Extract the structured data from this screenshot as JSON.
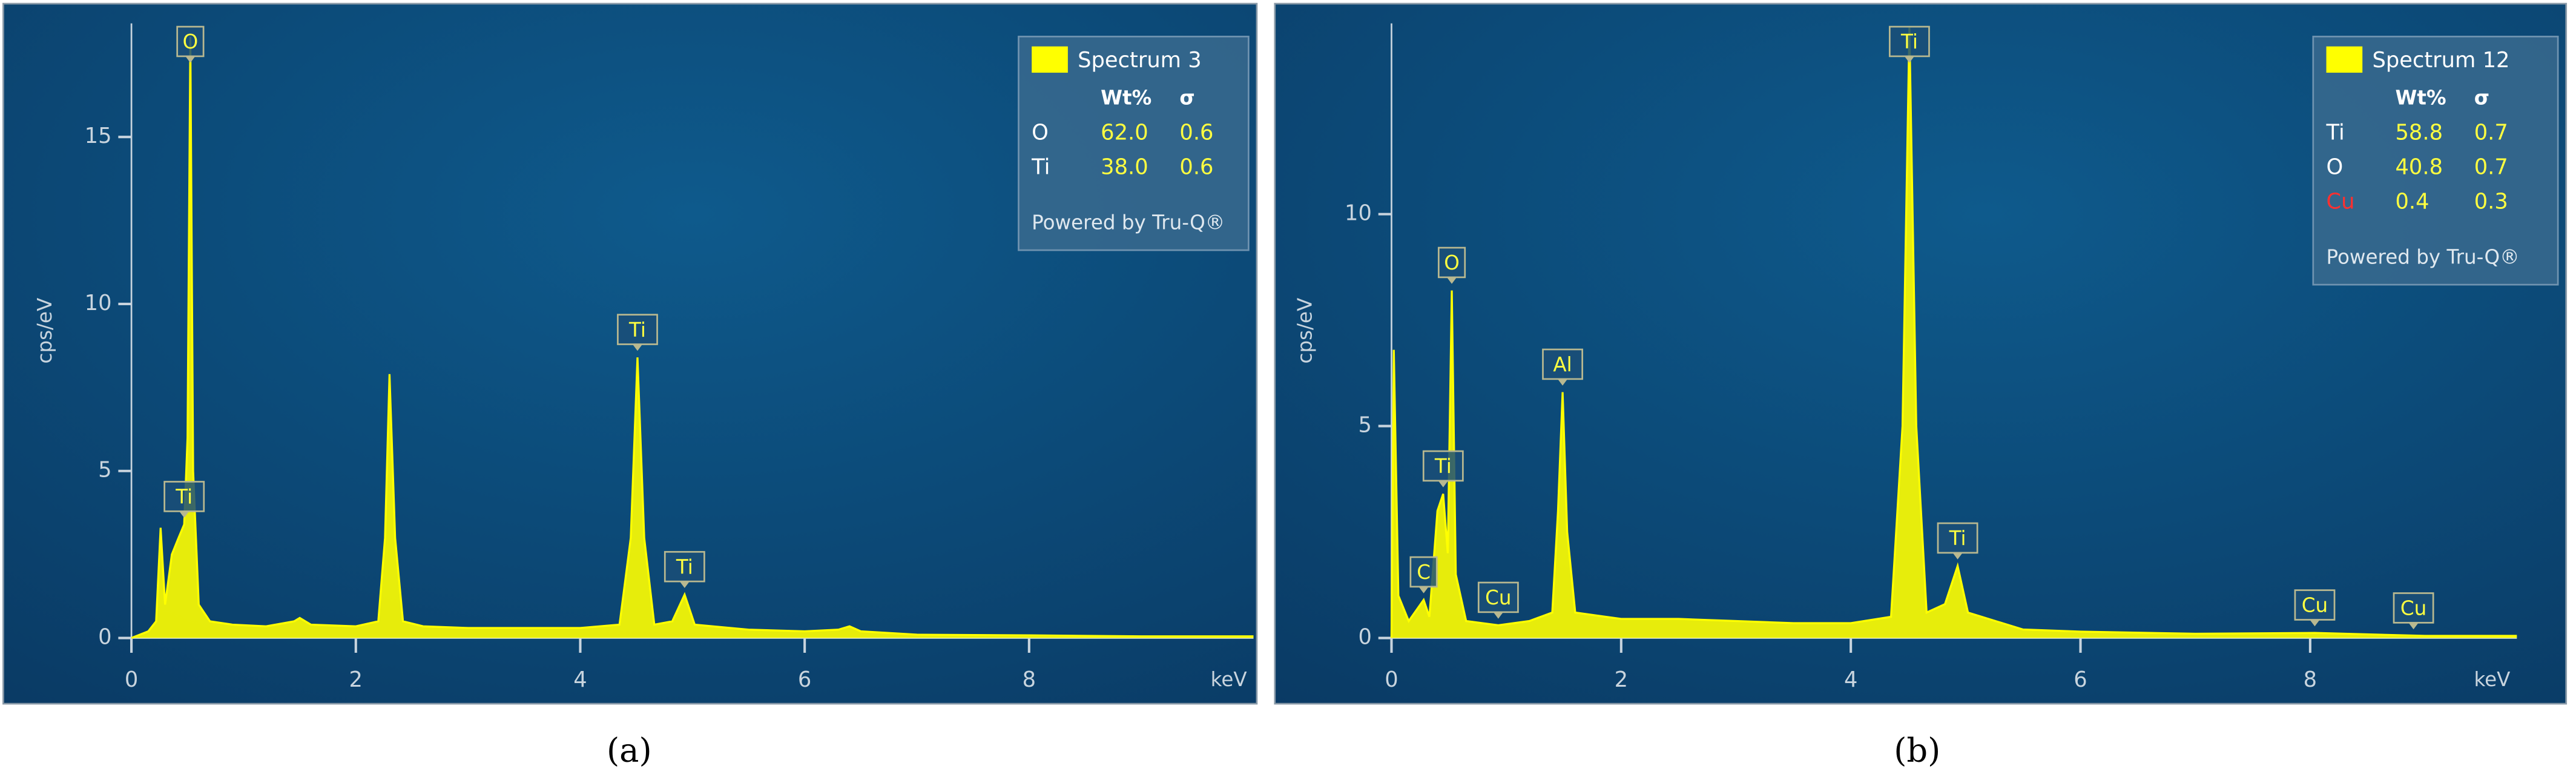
{
  "chart_data": [
    {
      "type": "line",
      "x_label": "keV",
      "y_label": "cps/eV",
      "caption": "(a)",
      "xlim": [
        0,
        10
      ],
      "xticks": [
        0,
        2,
        4,
        6,
        8
      ],
      "ylim": [
        0,
        18.4
      ],
      "yticks": [
        0,
        5,
        10,
        15
      ],
      "x": [
        0.0,
        0.15,
        0.22,
        0.26,
        0.3,
        0.36,
        0.42,
        0.47,
        0.5,
        0.525,
        0.55,
        0.6,
        0.7,
        0.9,
        1.2,
        1.45,
        1.5,
        1.6,
        2.0,
        2.2,
        2.26,
        2.3,
        2.35,
        2.42,
        2.6,
        3.0,
        3.5,
        4.0,
        4.35,
        4.45,
        4.51,
        4.57,
        4.66,
        4.82,
        4.93,
        5.02,
        5.5,
        6.0,
        6.3,
        6.4,
        6.5,
        7.0,
        8.0,
        9.0,
        10.0
      ],
      "series": [
        {
          "name": "Spectrum 3",
          "color": "#ffff00",
          "values": [
            0,
            0.2,
            0.5,
            3.3,
            1.0,
            2.5,
            3.0,
            3.4,
            6,
            18.0,
            5,
            1.0,
            0.5,
            0.4,
            0.35,
            0.5,
            0.6,
            0.4,
            0.35,
            0.5,
            3.0,
            7.9,
            3.0,
            0.5,
            0.35,
            0.3,
            0.3,
            0.3,
            0.4,
            3.0,
            8.4,
            3.0,
            0.4,
            0.5,
            1.3,
            0.4,
            0.25,
            0.2,
            0.25,
            0.35,
            0.2,
            0.1,
            0.08,
            0.05,
            0.05
          ]
        }
      ],
      "annotations": [
        {
          "text": "O",
          "x": 0.525,
          "y": 18.0
        },
        {
          "text": "Ti",
          "x": 0.47,
          "y": 3.4
        },
        {
          "text": "Ti",
          "x": 4.51,
          "y": 8.4
        },
        {
          "text": "Ti",
          "x": 4.93,
          "y": 1.3
        }
      ],
      "table": {
        "columns": [
          "Wt%",
          "σ"
        ],
        "rows": [
          [
            "O",
            "62.0",
            "0.6"
          ],
          [
            "Ti",
            "38.0",
            "0.6"
          ]
        ],
        "element_colors": [
          "#ffffff",
          "#ffffff"
        ],
        "footer": "Powered by Tru-Q®"
      }
    },
    {
      "type": "line",
      "x_label": "keV",
      "y_label": "cps/eV",
      "caption": "(b)",
      "xlim": [
        0,
        9.8
      ],
      "xticks": [
        0,
        2,
        4,
        6,
        8
      ],
      "ylim": [
        0,
        14.5
      ],
      "yticks": [
        0,
        5,
        10
      ],
      "x": [
        0.0,
        0.02,
        0.06,
        0.15,
        0.28,
        0.33,
        0.4,
        0.45,
        0.49,
        0.525,
        0.56,
        0.65,
        0.93,
        1.2,
        1.4,
        1.45,
        1.49,
        1.53,
        1.6,
        2.0,
        2.5,
        3.0,
        3.5,
        4.0,
        4.35,
        4.45,
        4.51,
        4.57,
        4.66,
        4.82,
        4.93,
        5.02,
        5.5,
        6.0,
        7.0,
        8.04,
        9.0,
        9.8
      ],
      "series": [
        {
          "name": "Spectrum 12",
          "color": "#ffff00",
          "values": [
            0,
            6.8,
            1.0,
            0.4,
            0.9,
            0.5,
            3.0,
            3.4,
            2.0,
            8.2,
            1.5,
            0.4,
            0.3,
            0.4,
            0.6,
            3.0,
            5.8,
            2.5,
            0.6,
            0.45,
            0.45,
            0.4,
            0.35,
            0.35,
            0.5,
            5,
            14.4,
            5,
            0.6,
            0.8,
            1.7,
            0.6,
            0.2,
            0.15,
            0.1,
            0.12,
            0.05,
            0.05
          ]
        }
      ],
      "annotations": [
        {
          "text": "C",
          "x": 0.28,
          "y": 0.9
        },
        {
          "text": "Ti",
          "x": 0.45,
          "y": 3.4
        },
        {
          "text": "O",
          "x": 0.525,
          "y": 8.2
        },
        {
          "text": "Cu",
          "x": 0.93,
          "y": 0.3
        },
        {
          "text": "Al",
          "x": 1.49,
          "y": 5.8
        },
        {
          "text": "Ti",
          "x": 4.51,
          "y": 14.4
        },
        {
          "text": "Ti",
          "x": 4.93,
          "y": 1.7
        },
        {
          "text": "Cu",
          "x": 8.04,
          "y": 0.12
        },
        {
          "text": "Cu",
          "x": 8.9,
          "y": 0.05
        }
      ],
      "table": {
        "columns": [
          "Wt%",
          "σ"
        ],
        "rows": [
          [
            "Ti",
            "58.8",
            "0.7"
          ],
          [
            "O",
            "40.8",
            "0.7"
          ],
          [
            "Cu",
            "0.4",
            "0.3"
          ]
        ],
        "element_colors": [
          "#ffffff",
          "#ffffff",
          "#ff3030"
        ],
        "footer": "Powered by Tru-Q®"
      }
    }
  ]
}
